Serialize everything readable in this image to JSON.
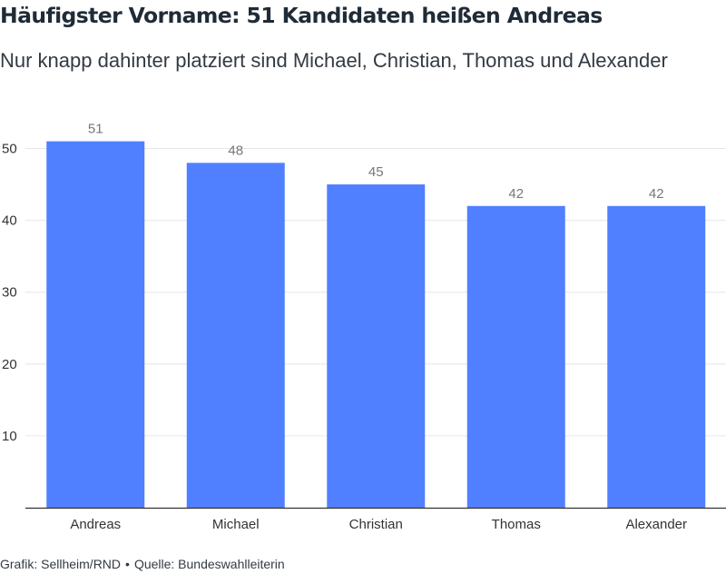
{
  "header": {
    "title": "Häufigster Vorname: 51 Kandidaten heißen Andreas",
    "subtitle": "Nur knapp dahinter platziert sind Michael, Christian, Thomas und Alexander"
  },
  "chart_data": {
    "type": "bar",
    "categories": [
      "Andreas",
      "Michael",
      "Christian",
      "Thomas",
      "Alexander"
    ],
    "values": [
      51,
      48,
      45,
      42,
      42
    ],
    "data_labels": [
      "51",
      "48",
      "45",
      "42",
      "42"
    ],
    "y_ticks": [
      10,
      20,
      30,
      40,
      50
    ],
    "ylim": [
      0,
      50
    ],
    "grid": true,
    "colors": {
      "bar": "#5080ff",
      "grid": "#e6e6e6",
      "axis": "#333333",
      "value_label": "#777777",
      "tick_label": "#333333"
    }
  },
  "footer": {
    "credit": "Grafik: Sellheim/RND",
    "separator": "•",
    "source": "Quelle: Bundeswahlleiterin"
  }
}
